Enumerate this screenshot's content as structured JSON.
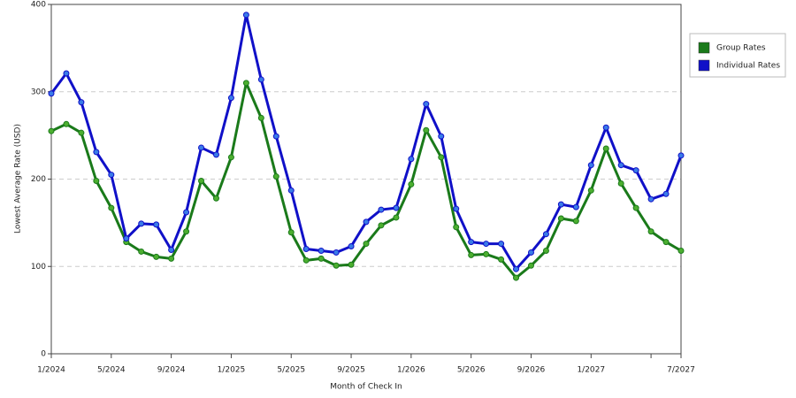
{
  "chart_data": {
    "type": "line",
    "x_label": "Month of Check In",
    "y_label": "Lowest Average Rate (USD)",
    "categories": [
      "1/2024",
      null,
      null,
      null,
      "5/2024",
      null,
      null,
      null,
      "9/2024",
      null,
      null,
      null,
      "1/2025",
      null,
      null,
      null,
      "5/2025",
      null,
      null,
      null,
      "9/2025",
      null,
      null,
      null,
      "1/2026",
      null,
      null,
      null,
      "5/2026",
      null,
      null,
      null,
      "9/2026",
      null,
      null,
      null,
      "1/2027",
      null,
      null,
      null,
      null,
      null,
      "7/2027"
    ],
    "series": [
      {
        "name": "Group Rates",
        "color": "#1a7a1a",
        "marker": "#4caf30",
        "values": [
          255,
          263,
          253,
          198,
          167,
          128,
          117,
          111,
          109,
          140,
          198,
          178,
          225,
          310,
          270,
          203,
          139,
          107,
          109,
          101,
          102,
          126,
          147,
          156,
          194,
          256,
          225,
          145,
          113,
          114,
          108,
          87,
          101,
          118,
          155,
          152,
          187,
          235,
          195,
          167,
          140,
          128,
          118
        ]
      },
      {
        "name": "Individual Rates",
        "color": "#1010c8",
        "marker": "#3a7be8",
        "values": [
          298,
          321,
          288,
          231,
          205,
          132,
          149,
          148,
          119,
          162,
          236,
          228,
          293,
          388,
          314,
          249,
          187,
          120,
          118,
          116,
          123,
          151,
          165,
          167,
          223,
          286,
          249,
          166,
          128,
          126,
          126,
          97,
          116,
          137,
          171,
          168,
          216,
          259,
          216,
          210,
          177,
          183,
          227
        ]
      }
    ],
    "ylim": [
      0,
      400
    ],
    "yticks": [
      0,
      100,
      200,
      300,
      400
    ],
    "grid": true
  }
}
